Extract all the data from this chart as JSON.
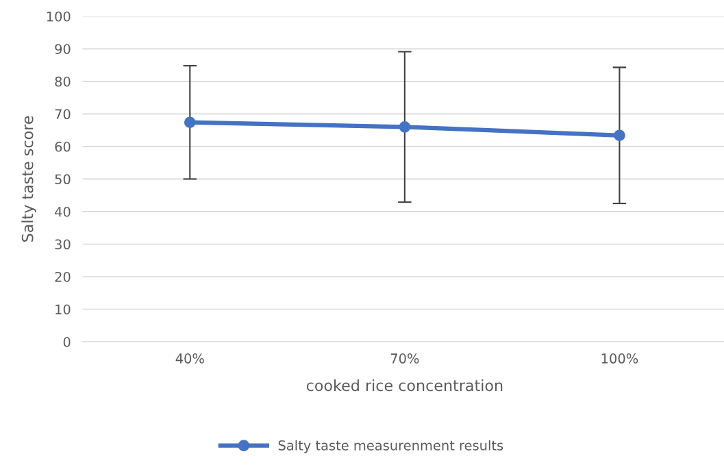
{
  "chart_data": {
    "type": "line",
    "xlabel": "cooked rice concentration",
    "ylabel": "Salty taste score",
    "categories": [
      "40%",
      "70%",
      "100%"
    ],
    "series": [
      {
        "name": "Salty taste measurenment results",
        "color": "#4472c4",
        "values": [
          67.4,
          66.0,
          63.4
        ],
        "errors": [
          17.4,
          23.1,
          20.9
        ]
      }
    ],
    "ylim": [
      0,
      100
    ],
    "yticks": [
      0,
      10,
      20,
      30,
      40,
      50,
      60,
      70,
      80,
      90,
      100
    ],
    "grid": "y",
    "legend": "bottom",
    "marker": "circle",
    "line_style": "solid"
  }
}
